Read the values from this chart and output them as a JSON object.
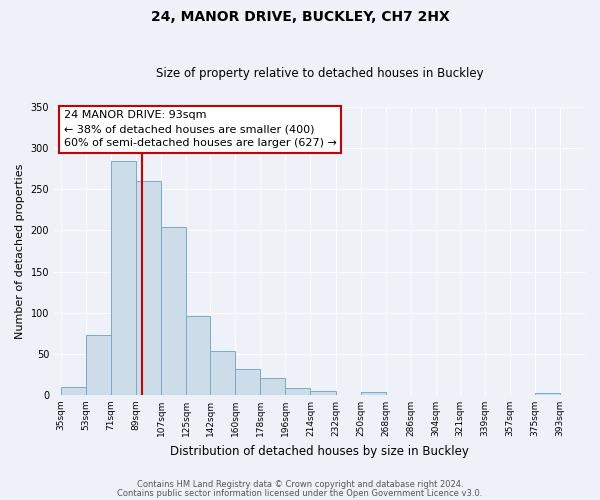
{
  "title": "24, MANOR DRIVE, BUCKLEY, CH7 2HX",
  "subtitle": "Size of property relative to detached houses in Buckley",
  "xlabel": "Distribution of detached houses by size in Buckley",
  "ylabel": "Number of detached properties",
  "bar_left_edges": [
    35,
    53,
    71,
    89,
    107,
    125,
    142,
    160,
    178,
    196,
    214,
    232,
    250,
    268,
    286,
    304,
    321,
    339,
    357,
    375
  ],
  "bar_heights": [
    10,
    73,
    285,
    260,
    204,
    96,
    54,
    31,
    21,
    8,
    5,
    0,
    4,
    0,
    0,
    0,
    0,
    0,
    0,
    2
  ],
  "bar_widths": [
    18,
    18,
    18,
    18,
    18,
    17,
    18,
    18,
    18,
    18,
    18,
    18,
    18,
    18,
    18,
    17,
    18,
    18,
    18,
    18
  ],
  "tick_labels": [
    "35sqm",
    "53sqm",
    "71sqm",
    "89sqm",
    "107sqm",
    "125sqm",
    "142sqm",
    "160sqm",
    "178sqm",
    "196sqm",
    "214sqm",
    "232sqm",
    "250sqm",
    "268sqm",
    "286sqm",
    "304sqm",
    "321sqm",
    "339sqm",
    "357sqm",
    "375sqm",
    "393sqm"
  ],
  "tick_positions": [
    35,
    53,
    71,
    89,
    107,
    125,
    142,
    160,
    178,
    196,
    214,
    232,
    250,
    268,
    286,
    304,
    321,
    339,
    357,
    375,
    393
  ],
  "bar_color": "#ccdce8",
  "bar_edge_color": "#7aaac8",
  "vline_x": 93,
  "vline_color": "#cc0000",
  "annotation_line1": "24 MANOR DRIVE: 93sqm",
  "annotation_line2": "← 38% of detached houses are smaller (400)",
  "annotation_line3": "60% of semi-detached houses are larger (627) →",
  "annotation_box_color": "#ffffff",
  "annotation_box_edge": "#cc0000",
  "ylim": [
    0,
    350
  ],
  "yticks": [
    0,
    50,
    100,
    150,
    200,
    250,
    300,
    350
  ],
  "footer1": "Contains HM Land Registry data © Crown copyright and database right 2024.",
  "footer2": "Contains public sector information licensed under the Open Government Licence v3.0.",
  "bg_color": "#eef2f8",
  "grid_color": "#ffffff",
  "title_fontsize": 10,
  "subtitle_fontsize": 8.5,
  "ylabel_fontsize": 8,
  "xlabel_fontsize": 8.5,
  "tick_fontsize": 6.5,
  "annotation_fontsize": 8,
  "footer_fontsize": 6
}
